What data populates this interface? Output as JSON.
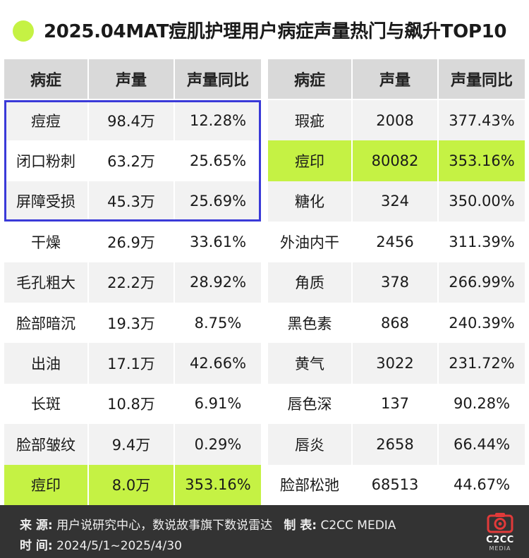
{
  "title": "2025.04MAT痘肌护理用户病症声量热门与飙升TOP10",
  "colors": {
    "accent": "#c5f244",
    "box": "#3a3ad8",
    "footer_bg": "#333333"
  },
  "chart_data": [
    {
      "type": "table",
      "columns": [
        "病症",
        "声量",
        "声量同比"
      ],
      "rows": [
        [
          "痘痘",
          "98.4万",
          "12.28%"
        ],
        [
          "闭口粉刺",
          "63.2万",
          "25.65%"
        ],
        [
          "屏障受损",
          "45.3万",
          "25.69%"
        ],
        [
          "干燥",
          "26.9万",
          "33.61%"
        ],
        [
          "毛孔粗大",
          "22.2万",
          "28.92%"
        ],
        [
          "脸部暗沉",
          "19.3万",
          "8.75%"
        ],
        [
          "出油",
          "17.1万",
          "42.66%"
        ],
        [
          "长斑",
          "10.8万",
          "6.91%"
        ],
        [
          "脸部皱纹",
          "9.4万",
          "0.29%"
        ],
        [
          "痘印",
          "8.0万",
          "353.16%"
        ]
      ],
      "highlighted_rows": [
        9
      ],
      "boxed_rows": [
        0,
        1,
        2
      ]
    },
    {
      "type": "table",
      "columns": [
        "病症",
        "声量",
        "声量同比"
      ],
      "rows": [
        [
          "瑕疵",
          "2008",
          "377.43%"
        ],
        [
          "痘印",
          "80082",
          "353.16%"
        ],
        [
          "糖化",
          "324",
          "350.00%"
        ],
        [
          "外油内干",
          "2456",
          "311.39%"
        ],
        [
          "角质",
          "378",
          "266.99%"
        ],
        [
          "黑色素",
          "868",
          "240.39%"
        ],
        [
          "黄气",
          "3022",
          "231.72%"
        ],
        [
          "唇色深",
          "137",
          "90.28%"
        ],
        [
          "唇炎",
          "2658",
          "66.44%"
        ],
        [
          "脸部松弛",
          "68513",
          "44.67%"
        ]
      ],
      "highlighted_rows": [
        1
      ]
    }
  ],
  "footer": {
    "source_label": "来 源:",
    "source_value": "用户说研究中心，数说故事旗下数说雷达",
    "maker_label": "制 表:",
    "maker_value": "C2CC MEDIA",
    "time_label": "时 间:",
    "time_value": "2024/5/1~2025/4/30",
    "logo_text": "C2CC",
    "logo_sub": "MEDIA"
  }
}
